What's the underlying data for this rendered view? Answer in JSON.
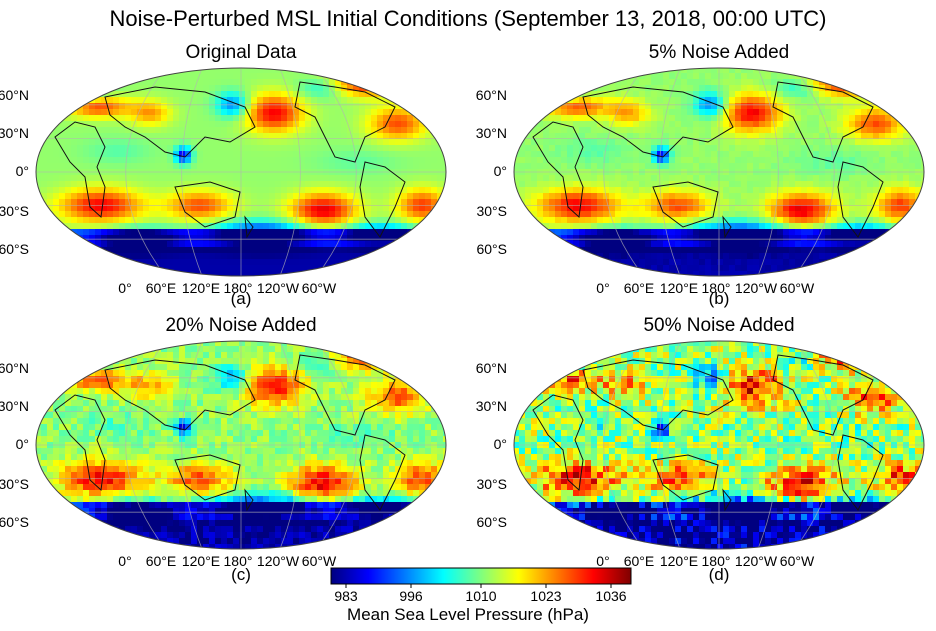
{
  "figure": {
    "title": "Noise-Perturbed MSL Initial Conditions (September 13, 2018, 00:00 UTC)"
  },
  "panels": [
    {
      "title": "Original Data",
      "label": "(a)",
      "noise_pct": 0
    },
    {
      "title": "5% Noise Added",
      "label": "(b)",
      "noise_pct": 5
    },
    {
      "title": "20% Noise Added",
      "label": "(c)",
      "noise_pct": 20
    },
    {
      "title": "50% Noise Added",
      "label": "(d)",
      "noise_pct": 50
    }
  ],
  "lat_labels": [
    "60°N",
    "30°N",
    "0°",
    "30°S",
    "60°S"
  ],
  "lon_labels": [
    "0°",
    "60°E",
    "120°E",
    "180°",
    "120°W",
    "60°W"
  ],
  "colorbar": {
    "label": "Mean Sea Level Pressure (hPa)",
    "ticks": [
      "983",
      "996",
      "1010",
      "1023",
      "1036"
    ],
    "range": [
      980,
      1040
    ],
    "colormap": "jet",
    "colors": [
      "#00007f",
      "#0000ff",
      "#007fff",
      "#00ffff",
      "#7fff7f",
      "#ffff00",
      "#ff7f00",
      "#ff0000",
      "#7f0000"
    ]
  },
  "chart_data": {
    "type": "heatmap",
    "title": "Noise-Perturbed MSL Initial Conditions (September 13, 2018, 00:00 UTC)",
    "projection": "Robinson (Pacific-centered)",
    "variable": "Mean Sea Level Pressure (hPa)",
    "value_range": [
      983,
      1036
    ],
    "grid": true,
    "subplots": [
      "Original Data",
      "5% Noise Added",
      "20% Noise Added",
      "50% Noise Added"
    ]
  }
}
